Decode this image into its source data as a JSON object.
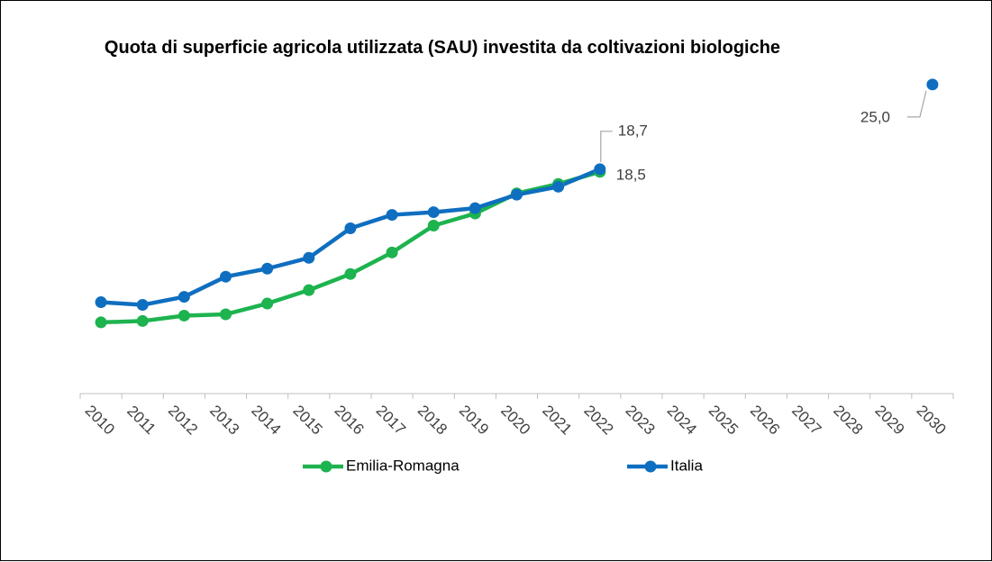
{
  "chart_data": {
    "type": "line",
    "title": "Quota di superficie agricola utilizzata (SAU) investita da coltivazioni biologiche",
    "categories": [
      "2010",
      "2011",
      "2012",
      "2013",
      "2014",
      "2015",
      "2016",
      "2017",
      "2018",
      "2019",
      "2020",
      "2021",
      "2022",
      "2023",
      "2024",
      "2025",
      "2026",
      "2027",
      "2028",
      "2029",
      "2030"
    ],
    "series": [
      {
        "name": "Emilia-Romagna",
        "color": "#1db34f",
        "values": [
          7.3,
          7.4,
          7.8,
          7.9,
          8.7,
          9.7,
          10.9,
          12.5,
          14.5,
          15.4,
          16.9,
          17.6,
          18.5,
          null,
          null,
          null,
          null,
          null,
          null,
          null,
          null
        ],
        "value_labels": [
          null,
          null,
          null,
          null,
          null,
          null,
          null,
          null,
          null,
          null,
          null,
          null,
          "18,5",
          null,
          null,
          null,
          null,
          null,
          null,
          null,
          null
        ]
      },
      {
        "name": "Italia",
        "color": "#0f6ec0",
        "values": [
          8.8,
          8.6,
          9.2,
          10.7,
          11.3,
          12.1,
          14.3,
          15.3,
          15.5,
          15.8,
          16.8,
          17.4,
          18.7,
          null,
          null,
          null,
          null,
          null,
          null,
          null,
          25.0
        ],
        "value_labels": [
          null,
          null,
          null,
          null,
          null,
          null,
          null,
          null,
          null,
          null,
          null,
          null,
          "18,7",
          null,
          null,
          null,
          null,
          null,
          null,
          null,
          "25,0"
        ]
      }
    ],
    "ylim": [
      2,
      27
    ],
    "legend": "bottom"
  }
}
